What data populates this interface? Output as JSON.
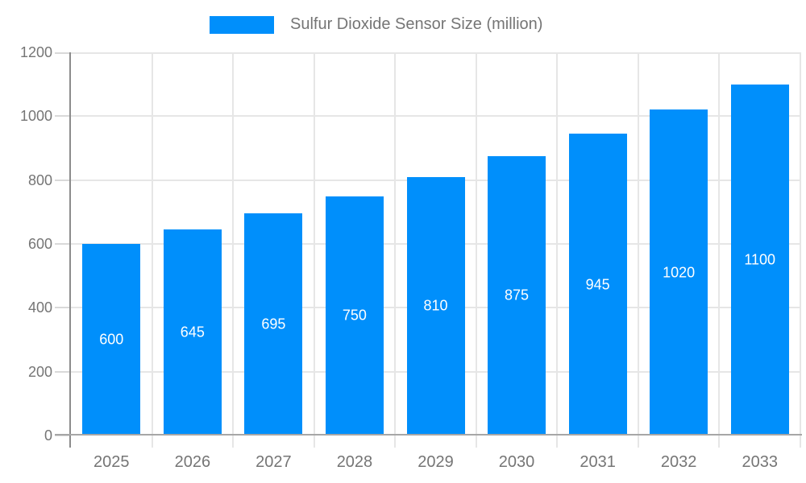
{
  "legend": {
    "label": "Sulfur Dioxide Sensor Size (million)"
  },
  "chart_data": {
    "type": "bar",
    "title": "",
    "xlabel": "",
    "ylabel": "",
    "categories": [
      "2025",
      "2026",
      "2027",
      "2028",
      "2029",
      "2030",
      "2031",
      "2032",
      "2033"
    ],
    "series": [
      {
        "name": "Sulfur Dioxide Sensor Size (million)",
        "values": [
          600,
          645,
          695,
          750,
          810,
          875,
          945,
          1020,
          1100
        ]
      }
    ],
    "ylim": [
      0,
      1200
    ],
    "yticks": [
      0,
      200,
      400,
      600,
      800,
      1000,
      1200
    ],
    "grid": true,
    "legend_position": "top-center",
    "bar_value_labels_position": "inside-center",
    "colors": {
      "bar": "#008FFB",
      "grid": "#e6e6e6",
      "axis": "#8c8c8c",
      "baseline": "#a6a6a6",
      "tick": "#d9d9d9",
      "text": "#757575",
      "bar_label": "#ffffff"
    }
  }
}
